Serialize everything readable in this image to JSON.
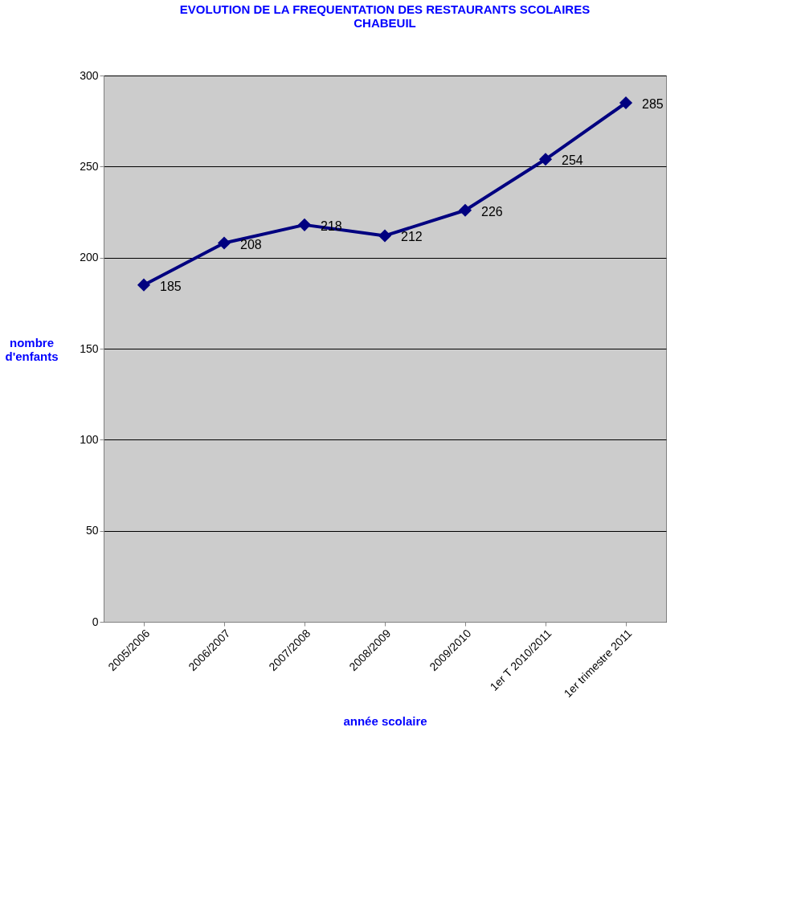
{
  "chart_data": {
    "type": "line",
    "title": "EVOLUTION DE LA FREQUENTATION DES RESTAURANTS SCOLAIRES CHABEUIL",
    "xlabel": "année scolaire",
    "ylabel": "nombre d'enfants",
    "categories": [
      "2005/2006",
      "2006/2007",
      "2007/2008",
      "2008/2009",
      "2009/2010",
      "1er T 2010/2011",
      "1er trimestre 2011"
    ],
    "series": [
      {
        "color": "#000080",
        "values": [
          185,
          208,
          218,
          212,
          226,
          254,
          285
        ]
      }
    ],
    "ylim": [
      0,
      300
    ],
    "yticks": [
      0,
      50,
      100,
      150,
      200,
      250,
      300
    ],
    "grid": "y",
    "marker": "diamond",
    "line_style": "solid",
    "data_labels": true
  }
}
